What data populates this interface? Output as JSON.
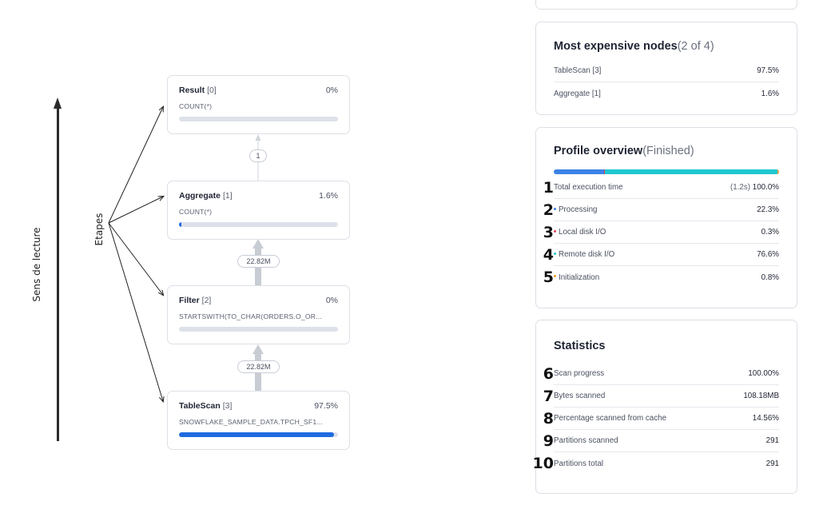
{
  "annotations": {
    "reading_direction_label": "Sens de lecture",
    "stages_label": "Etapes"
  },
  "operator_tree": {
    "nodes": [
      {
        "name": "Result",
        "index": "[0]",
        "percent": "0%",
        "detail": "COUNT(*)",
        "progress": 0
      },
      {
        "name": "Aggregate",
        "index": "[1]",
        "percent": "1.6%",
        "detail": "COUNT(*)",
        "progress": 0.016
      },
      {
        "name": "Filter",
        "index": "[2]",
        "percent": "0%",
        "detail": "STARTSWITH(TO_CHAR(ORDERS.O_OR...",
        "progress": 0
      },
      {
        "name": "TableScan",
        "index": "[3]",
        "percent": "97.5%",
        "detail": "SNOWFLAKE_SAMPLE_DATA.TPCH_SF1...",
        "progress": 0.975
      }
    ],
    "edges": [
      {
        "rows": "1"
      },
      {
        "rows": "22.82M"
      },
      {
        "rows": "22.82M"
      }
    ]
  },
  "most_expensive": {
    "title": "Most expensive nodes",
    "count": "(2 of 4)",
    "items": [
      {
        "label": "TableScan [3]",
        "value": "97.5%"
      },
      {
        "label": "Aggregate [1]",
        "value": "1.6%"
      }
    ]
  },
  "profile_overview": {
    "title": "Profile overview",
    "status": "(Finished)",
    "bar_segments": [
      {
        "name": "Processing",
        "share": 0.223,
        "color": "#3b82e6"
      },
      {
        "name": "Local disk I/O",
        "share": 0.003,
        "color": "#e0454f"
      },
      {
        "name": "Remote disk I/O",
        "share": 0.766,
        "color": "#1fc8cf"
      },
      {
        "name": "Initialization",
        "share": 0.008,
        "color": "#f39a2b"
      }
    ],
    "rows": [
      {
        "marker": "1",
        "label": "Total execution time",
        "seconds": "(1.2s)",
        "value": "100.0%",
        "dot": ""
      },
      {
        "marker": "2",
        "label": "Processing",
        "seconds": "",
        "value": "22.3%",
        "dot": "#3b82e6"
      },
      {
        "marker": "3",
        "label": "Local disk I/O",
        "seconds": "",
        "value": "0.3%",
        "dot": "#e0454f"
      },
      {
        "marker": "4",
        "label": "Remote disk I/O",
        "seconds": "",
        "value": "76.6%",
        "dot": "#1fc8cf"
      },
      {
        "marker": "5",
        "label": "Initialization",
        "seconds": "",
        "value": "0.8%",
        "dot": "#f39a2b"
      }
    ]
  },
  "statistics": {
    "title": "Statistics",
    "rows": [
      {
        "marker": "6",
        "label": "Scan progress",
        "value": "100.00%"
      },
      {
        "marker": "7",
        "label": "Bytes scanned",
        "value": "108.18MB"
      },
      {
        "marker": "8",
        "label": "Percentage scanned from cache",
        "value": "14.56%"
      },
      {
        "marker": "9",
        "label": "Partitions scanned",
        "value": "291"
      },
      {
        "marker": "10",
        "label": "Partitions total",
        "value": "291"
      }
    ]
  }
}
